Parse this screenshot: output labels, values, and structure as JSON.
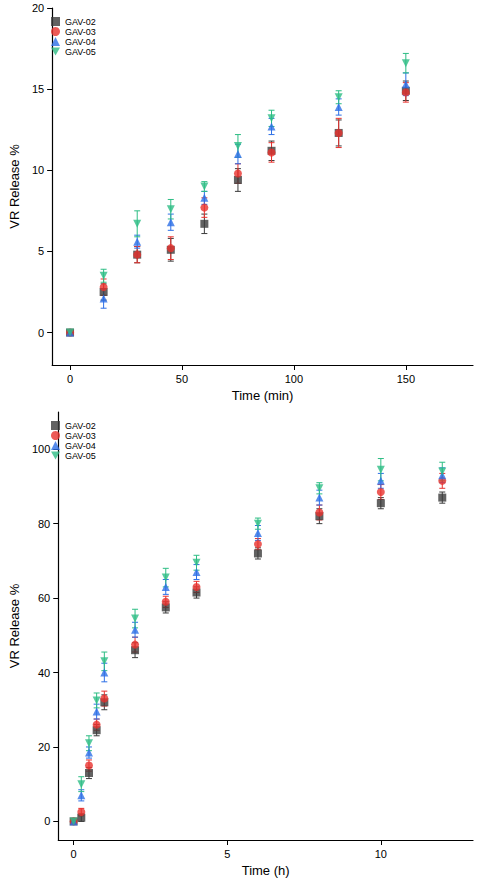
{
  "chart_data": [
    {
      "type": "scatter",
      "xlabel": "Time (min)",
      "ylabel": "VR Release %",
      "x": [
        0,
        15,
        30,
        45,
        60,
        75,
        90,
        120,
        150
      ],
      "xlim": [
        -8,
        180
      ],
      "xticks": [
        0,
        50,
        100,
        150
      ],
      "ylim": [
        -2,
        20
      ],
      "yticks": [
        0,
        5,
        10,
        15,
        20
      ],
      "grid": false,
      "legend": "upper left",
      "series": [
        {
          "name": "GAV-02",
          "color": "#3b3b3b",
          "marker": "square",
          "values": [
            0,
            2.5,
            4.8,
            5.1,
            6.7,
            9.4,
            11.2,
            12.3,
            14.9
          ],
          "errors": [
            0,
            0.5,
            0.5,
            0.7,
            0.6,
            0.7,
            0.6,
            0.8,
            0.6
          ]
        },
        {
          "name": "GAV-03",
          "color": "#e8322e",
          "marker": "circle",
          "values": [
            0,
            2.8,
            4.8,
            5.2,
            7.7,
            9.8,
            11.1,
            12.3,
            14.8
          ],
          "errors": [
            0,
            0.5,
            0.5,
            0.7,
            0.6,
            0.6,
            0.6,
            0.9,
            0.6
          ]
        },
        {
          "name": "GAV-04",
          "color": "#2d6fe6",
          "marker": "triangle",
          "values": [
            0,
            2.1,
            5.6,
            6.8,
            8.3,
            11.0,
            12.7,
            13.9,
            15.3
          ],
          "errors": [
            0,
            0.6,
            0.4,
            0.5,
            0.4,
            0.6,
            0.5,
            0.5,
            0.7
          ]
        },
        {
          "name": "GAV-05",
          "color": "#2dbd84",
          "marker": "triangle-down",
          "values": [
            0,
            3.5,
            6.7,
            7.6,
            9.0,
            11.5,
            13.2,
            14.5,
            16.6
          ],
          "errors": [
            0,
            0.4,
            0.8,
            0.6,
            0.3,
            0.7,
            0.5,
            0.4,
            0.6
          ]
        }
      ]
    },
    {
      "type": "scatter",
      "xlabel": "Time (h)",
      "ylabel": "VR Release %",
      "x": [
        0,
        0.25,
        0.5,
        0.75,
        1,
        2,
        3,
        4,
        6,
        8,
        10,
        12
      ],
      "xlim": [
        -0.5,
        13
      ],
      "xticks": [
        0,
        5,
        10
      ],
      "ylim": [
        -5,
        110
      ],
      "yticks": [
        0,
        20,
        40,
        60,
        80,
        100
      ],
      "grid": false,
      "legend": "upper left",
      "series": [
        {
          "name": "GAV-02",
          "color": "#3b3b3b",
          "marker": "square",
          "values": [
            0,
            1,
            13,
            24.5,
            32,
            46,
            57.5,
            61.5,
            72,
            82,
            85.5,
            87
          ],
          "errors": [
            0,
            1,
            1.5,
            1.5,
            2,
            2,
            1.5,
            1.5,
            1.5,
            2,
            1.5,
            1.5
          ]
        },
        {
          "name": "GAV-03",
          "color": "#e8322e",
          "marker": "circle",
          "values": [
            0,
            2.5,
            15,
            26,
            33,
            47.5,
            59,
            63,
            74.5,
            83,
            88.5,
            91.5
          ],
          "errors": [
            0,
            1,
            1.5,
            1.5,
            2,
            2,
            1.5,
            1.5,
            1.5,
            2,
            2,
            2
          ]
        },
        {
          "name": "GAV-04",
          "color": "#2d6fe6",
          "marker": "triangle",
          "values": [
            0,
            7,
            18.5,
            29.5,
            40,
            51.5,
            63,
            67,
            77.5,
            87,
            91.5,
            93
          ],
          "errors": [
            0,
            1.5,
            1.5,
            2,
            2.5,
            2,
            2,
            2,
            2,
            2,
            2,
            2
          ]
        },
        {
          "name": "GAV-05",
          "color": "#2dbd84",
          "marker": "triangle-down",
          "values": [
            0,
            10,
            21,
            32.5,
            43,
            54.5,
            65.5,
            69.5,
            80,
            89.5,
            94.5,
            94
          ],
          "errors": [
            0,
            2,
            2,
            2,
            2.5,
            2.5,
            2.5,
            2,
            1.5,
            1.5,
            3,
            2.5
          ]
        }
      ]
    }
  ]
}
